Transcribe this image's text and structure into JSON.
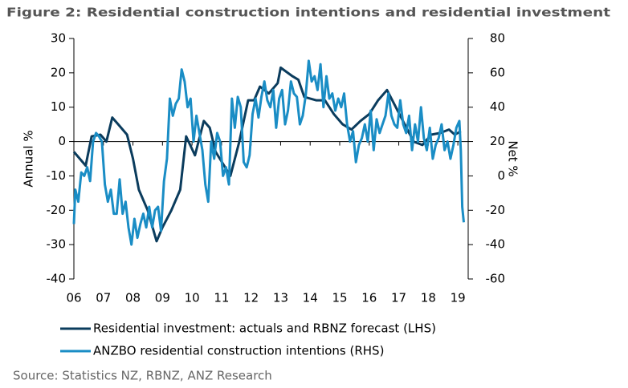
{
  "chart_data": {
    "type": "line",
    "title": "Figure 2: Residential construction intentions and residential investment",
    "y_label": "Annual %",
    "y2_label": "Net %",
    "source": "Source: Statistics NZ, RBNZ, ANZ Research",
    "xlim": [
      2006,
      2019.35
    ],
    "xticks": [
      {
        "value": 2006,
        "label": "06"
      },
      {
        "value": 2007,
        "label": "07"
      },
      {
        "value": 2008,
        "label": "08"
      },
      {
        "value": 2009,
        "label": "09"
      },
      {
        "value": 2010,
        "label": "10"
      },
      {
        "value": 2011,
        "label": "11"
      },
      {
        "value": 2012,
        "label": "12"
      },
      {
        "value": 2013,
        "label": "13"
      },
      {
        "value": 2014,
        "label": "14"
      },
      {
        "value": 2015,
        "label": "15"
      },
      {
        "value": 2016,
        "label": "16"
      },
      {
        "value": 2017,
        "label": "17"
      },
      {
        "value": 2018,
        "label": "18"
      },
      {
        "value": 2019,
        "label": "19"
      }
    ],
    "ylim": [
      -40,
      30
    ],
    "yticks": [
      30,
      20,
      10,
      0,
      -10,
      -20,
      -30,
      -40
    ],
    "y2lim": [
      -60,
      80
    ],
    "y2ticks": [
      80,
      60,
      40,
      20,
      0,
      -20,
      -40,
      -60
    ],
    "series": [
      {
        "name": "Residential investment: actuals and RBNZ forecast (LHS)",
        "color": "#0b3c5d",
        "x": [
          2006.0,
          2006.4,
          2006.6,
          2006.9,
          2007.1,
          2007.3,
          2007.5,
          2007.8,
          2008.0,
          2008.2,
          2008.5,
          2008.8,
          2009.0,
          2009.3,
          2009.6,
          2009.8,
          2010.1,
          2010.4,
          2010.6,
          2010.8,
          2011.3,
          2011.6,
          2011.9,
          2012.1,
          2012.3,
          2012.6,
          2012.9,
          2013.0,
          2013.4,
          2013.6,
          2013.8,
          2014.2,
          2014.5,
          2014.8,
          2015.1,
          2015.4,
          2015.7,
          2016.0,
          2016.3,
          2016.6,
          2016.9,
          2017.2,
          2017.5,
          2017.8,
          2018.1,
          2018.4,
          2018.7,
          2018.9,
          2019.1
        ],
        "values": [
          -3,
          -7,
          1.5,
          2,
          0,
          7,
          5,
          2,
          -5,
          -14,
          -20,
          -29,
          -25,
          -20,
          -14,
          1.5,
          -4,
          6,
          4,
          -3,
          -10,
          0,
          12,
          12,
          16,
          14,
          17,
          21.5,
          19,
          18,
          13,
          12,
          12,
          8,
          5,
          3.5,
          6,
          8,
          12,
          15,
          10,
          5,
          0,
          -1,
          2,
          2.5,
          3.5,
          2,
          3
        ]
      },
      {
        "name": "ANZBO residential construction intentions (RHS)",
        "color": "#1a8dc5",
        "axis": "y2",
        "x": [
          2006.0,
          2006.05,
          2006.15,
          2006.25,
          2006.35,
          2006.45,
          2006.55,
          2006.65,
          2006.75,
          2006.85,
          2006.95,
          2007.05,
          2007.15,
          2007.25,
          2007.35,
          2007.45,
          2007.55,
          2007.65,
          2007.75,
          2007.85,
          2007.95,
          2008.05,
          2008.15,
          2008.25,
          2008.35,
          2008.45,
          2008.55,
          2008.65,
          2008.75,
          2008.85,
          2008.95,
          2009.05,
          2009.15,
          2009.25,
          2009.35,
          2009.45,
          2009.55,
          2009.65,
          2009.75,
          2009.85,
          2009.95,
          2010.05,
          2010.15,
          2010.25,
          2010.35,
          2010.45,
          2010.55,
          2010.65,
          2010.75,
          2010.85,
          2010.95,
          2011.05,
          2011.15,
          2011.25,
          2011.35,
          2011.45,
          2011.55,
          2011.65,
          2011.75,
          2011.85,
          2011.95,
          2012.05,
          2012.15,
          2012.25,
          2012.35,
          2012.45,
          2012.55,
          2012.65,
          2012.75,
          2012.85,
          2012.95,
          2013.05,
          2013.15,
          2013.25,
          2013.35,
          2013.45,
          2013.55,
          2013.65,
          2013.75,
          2013.85,
          2013.95,
          2014.05,
          2014.15,
          2014.25,
          2014.35,
          2014.45,
          2014.55,
          2014.65,
          2014.75,
          2014.85,
          2014.95,
          2015.05,
          2015.15,
          2015.25,
          2015.35,
          2015.45,
          2015.55,
          2015.65,
          2015.75,
          2015.85,
          2015.95,
          2016.05,
          2016.15,
          2016.25,
          2016.35,
          2016.45,
          2016.55,
          2016.65,
          2016.75,
          2016.85,
          2016.95,
          2017.05,
          2017.15,
          2017.25,
          2017.35,
          2017.45,
          2017.55,
          2017.65,
          2017.75,
          2017.85,
          2017.95,
          2018.05,
          2018.15,
          2018.25,
          2018.35,
          2018.45,
          2018.55,
          2018.65,
          2018.75,
          2018.85,
          2018.95,
          2019.05,
          2019.1,
          2019.15,
          2019.2
        ],
        "values": [
          -28,
          -8,
          -15,
          2,
          0,
          5,
          -3,
          20,
          25,
          23,
          20,
          -5,
          -15,
          -8,
          -22,
          -22,
          -2,
          -22,
          -15,
          -30,
          -40,
          -25,
          -36,
          -28,
          -22,
          -30,
          -18,
          -30,
          -20,
          -18,
          -32,
          -3,
          10,
          45,
          35,
          42,
          45,
          62,
          55,
          40,
          45,
          20,
          35,
          25,
          15,
          -5,
          -15,
          20,
          10,
          25,
          20,
          0,
          5,
          -5,
          45,
          28,
          46,
          40,
          8,
          5,
          12,
          36,
          45,
          34,
          46,
          55,
          44,
          40,
          50,
          28,
          45,
          50,
          30,
          38,
          55,
          48,
          46,
          30,
          35,
          47,
          67,
          55,
          58,
          50,
          65,
          40,
          58,
          45,
          48,
          38,
          45,
          40,
          48,
          30,
          20,
          26,
          8,
          18,
          22,
          30,
          20,
          38,
          15,
          33,
          25,
          30,
          35,
          48,
          35,
          30,
          28,
          44,
          30,
          25,
          35,
          15,
          30,
          20,
          40,
          22,
          15,
          28,
          10,
          18,
          22,
          30,
          15,
          20,
          10,
          18,
          28,
          32,
          15,
          -18,
          -27
        ]
      }
    ]
  }
}
